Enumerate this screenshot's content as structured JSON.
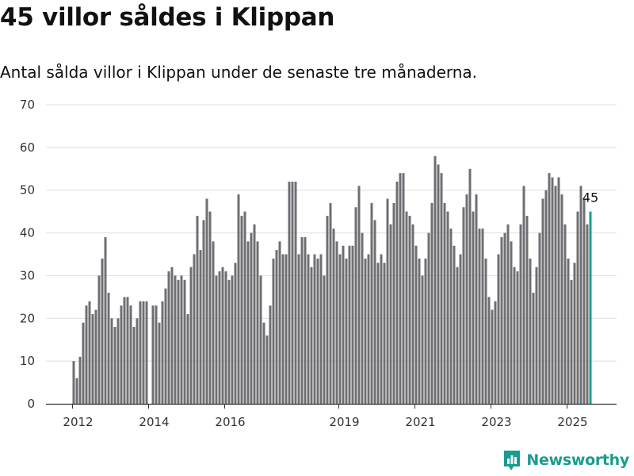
{
  "title": "45 villor såldes i Klippan",
  "subtitle": "Antal sålda villor i Klippan under de senaste tre månaderna.",
  "brand": {
    "name": "Newsworthy",
    "icon": "newsworthy-logo-icon",
    "color": "#1a9c8f"
  },
  "colors": {
    "bar": "#6f6e73",
    "highlight": "#1a9c8f",
    "grid": "#dddddd",
    "axis": "#333333"
  },
  "chart_data": {
    "type": "bar",
    "title": "45 villor såldes i Klippan",
    "subtitle": "Antal sålda villor i Klippan under de senaste tre månaderna.",
    "xlabel": "",
    "ylabel": "",
    "ylim": [
      0,
      70
    ],
    "yticks": [
      0,
      10,
      20,
      30,
      40,
      50,
      60,
      70
    ],
    "xticks": [
      "2012",
      "2014",
      "2016",
      "2019",
      "2021",
      "2023",
      "2025"
    ],
    "x": [
      "2012-01",
      "2012-02",
      "2012-03",
      "2012-04",
      "2012-05",
      "2012-06",
      "2012-07",
      "2012-08",
      "2012-09",
      "2012-10",
      "2012-11",
      "2012-12",
      "2013-01",
      "2013-02",
      "2013-03",
      "2013-04",
      "2013-05",
      "2013-06",
      "2013-07",
      "2013-08",
      "2013-09",
      "2013-10",
      "2013-11",
      "2013-12",
      "2014-01",
      "2014-02",
      "2014-03",
      "2014-04",
      "2014-05",
      "2014-06",
      "2014-07",
      "2014-08",
      "2014-09",
      "2014-10",
      "2014-11",
      "2014-12",
      "2015-01",
      "2015-02",
      "2015-03",
      "2015-04",
      "2015-05",
      "2015-06",
      "2015-07",
      "2015-08",
      "2015-09",
      "2015-10",
      "2015-11",
      "2015-12",
      "2016-01",
      "2016-02",
      "2016-03",
      "2016-04",
      "2016-05",
      "2016-06",
      "2016-07",
      "2016-08",
      "2016-09",
      "2016-10",
      "2016-11",
      "2016-12",
      "2017-01",
      "2017-02",
      "2017-03",
      "2017-04",
      "2017-05",
      "2017-06",
      "2017-07",
      "2017-08",
      "2017-09",
      "2017-10",
      "2017-11",
      "2017-12",
      "2018-01",
      "2018-02",
      "2018-03",
      "2018-04",
      "2018-05",
      "2018-06",
      "2018-07",
      "2018-08",
      "2018-09",
      "2018-10",
      "2018-11",
      "2018-12",
      "2019-01",
      "2019-02",
      "2019-03",
      "2019-04",
      "2019-05",
      "2019-06",
      "2019-07",
      "2019-08",
      "2019-09",
      "2019-10",
      "2019-11",
      "2019-12",
      "2020-01",
      "2020-02",
      "2020-03",
      "2020-04",
      "2020-05",
      "2020-06",
      "2020-07",
      "2020-08",
      "2020-09",
      "2020-10",
      "2020-11",
      "2020-12",
      "2021-01",
      "2021-02",
      "2021-03",
      "2021-04",
      "2021-05",
      "2021-06",
      "2021-07",
      "2021-08",
      "2021-09",
      "2021-10",
      "2021-11",
      "2021-12",
      "2022-01",
      "2022-02",
      "2022-03",
      "2022-04",
      "2022-05",
      "2022-06",
      "2022-07",
      "2022-08",
      "2022-09",
      "2022-10",
      "2022-11",
      "2022-12",
      "2023-01",
      "2023-02",
      "2023-03",
      "2023-04",
      "2023-05",
      "2023-06",
      "2023-07",
      "2023-08",
      "2023-09",
      "2023-10",
      "2023-11",
      "2023-12",
      "2024-01",
      "2024-02",
      "2024-03",
      "2024-04",
      "2024-05",
      "2024-06",
      "2024-07",
      "2024-08",
      "2024-09",
      "2024-10",
      "2024-11",
      "2024-12",
      "2025-01",
      "2025-02",
      "2025-03",
      "2025-04",
      "2025-05",
      "2025-06",
      "2025-07",
      "2025-08"
    ],
    "values": [
      10,
      6,
      11,
      19,
      23,
      24,
      21,
      22,
      30,
      34,
      39,
      26,
      20,
      18,
      20,
      23,
      25,
      25,
      23,
      18,
      20,
      24,
      24,
      24,
      0,
      23,
      23,
      19,
      24,
      27,
      31,
      32,
      30,
      29,
      30,
      29,
      21,
      32,
      35,
      44,
      36,
      43,
      48,
      45,
      38,
      30,
      31,
      32,
      31,
      29,
      30,
      33,
      49,
      44,
      45,
      38,
      40,
      42,
      38,
      30,
      19,
      16,
      23,
      34,
      36,
      38,
      35,
      35,
      52,
      52,
      52,
      35,
      39,
      39,
      35,
      32,
      35,
      34,
      35,
      30,
      44,
      47,
      41,
      38,
      35,
      37,
      34,
      37,
      37,
      46,
      51,
      40,
      34,
      35,
      47,
      43,
      33,
      35,
      33,
      48,
      42,
      47,
      52,
      54,
      54,
      45,
      44,
      42,
      37,
      34,
      30,
      34,
      40,
      47,
      58,
      56,
      54,
      47,
      45,
      41,
      37,
      32,
      35,
      46,
      49,
      55,
      45,
      49,
      41,
      41,
      34,
      25,
      22,
      24,
      35,
      39,
      40,
      42,
      38,
      32,
      31,
      42,
      51,
      44,
      34,
      26,
      32,
      40,
      48,
      50,
      54,
      53,
      51,
      53,
      49,
      42,
      34,
      29,
      33,
      45,
      51,
      48,
      42,
      45
    ],
    "annotation": {
      "label": "45",
      "index": 163
    },
    "grid": true,
    "legend": "none"
  }
}
